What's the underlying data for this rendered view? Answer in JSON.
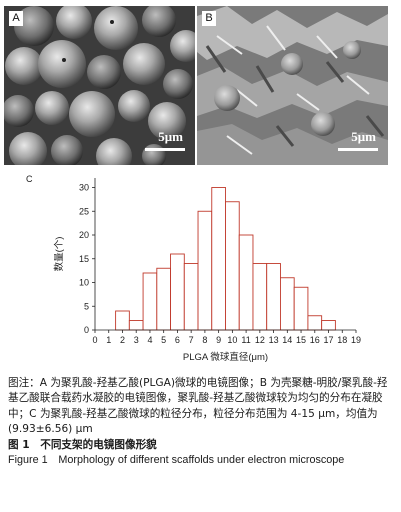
{
  "panels": {
    "a": {
      "letter": "A",
      "scale_bar": "5μm"
    },
    "b": {
      "letter": "B",
      "scale_bar": "5μm"
    }
  },
  "chart_data": {
    "type": "bar",
    "panel_letter": "C",
    "xlabel": "PLGA 微球直径(μm)",
    "ylabel": "数量(个)",
    "xlim": [
      0,
      19
    ],
    "ylim": [
      0,
      32
    ],
    "x_ticks": [
      0,
      1,
      2,
      3,
      4,
      5,
      6,
      7,
      8,
      9,
      10,
      11,
      12,
      13,
      14,
      15,
      16,
      17,
      18,
      19
    ],
    "y_ticks": [
      0,
      5,
      10,
      15,
      20,
      25,
      30
    ],
    "bin_width": 1,
    "bins": [
      {
        "start": 1.5,
        "count": 4
      },
      {
        "start": 2.5,
        "count": 2
      },
      {
        "start": 3.5,
        "count": 12
      },
      {
        "start": 4.5,
        "count": 13
      },
      {
        "start": 5.5,
        "count": 16
      },
      {
        "start": 6.5,
        "count": 14
      },
      {
        "start": 7.5,
        "count": 25
      },
      {
        "start": 8.5,
        "count": 30
      },
      {
        "start": 9.5,
        "count": 27
      },
      {
        "start": 10.5,
        "count": 20
      },
      {
        "start": 11.5,
        "count": 14
      },
      {
        "start": 12.5,
        "count": 14
      },
      {
        "start": 13.5,
        "count": 11
      },
      {
        "start": 14.5,
        "count": 9
      },
      {
        "start": 15.5,
        "count": 3
      },
      {
        "start": 16.5,
        "count": 2
      }
    ],
    "bar_fill": "#ffffff",
    "bar_stroke": "#c0392b"
  },
  "caption": {
    "note": "图注：A 为聚乳酸-羟基乙酸(PLGA)微球的电镜图像；B 为壳聚糖-明胶/聚乳酸-羟基乙酸联合载药水凝胶的电镜图像，聚乳酸-羟基乙酸微球较为均匀的分布在凝胶中；C 为聚乳酸-羟基乙酸微球的粒径分布，粒径分布范围为 4-15 μm，均值为(9.93±6.56) μm",
    "figure_cn_number": "图 1",
    "figure_cn_title": "不同支架的电镜图像形貌",
    "figure_en": "Figure 1　Morphology of different scaffolds under electron microscope"
  }
}
